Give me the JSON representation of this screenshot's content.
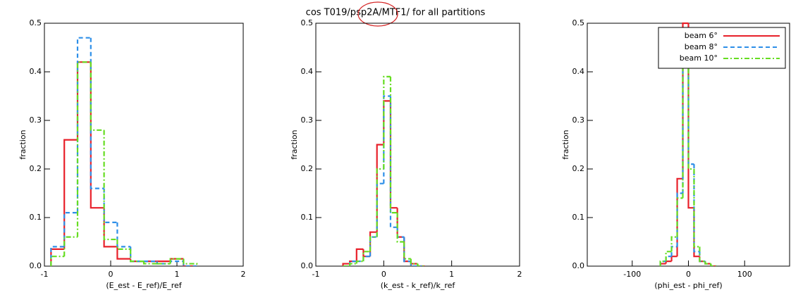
{
  "chart_data": [
    {
      "type": "histogram",
      "title": "cos T019/psp2A/MTF1/ for all partitions",
      "x_label": "(E_est - E_ref)/E_ref",
      "y_label": "fraction",
      "bins": [
        -0.9,
        -0.7,
        -0.5,
        -0.3,
        -0.1,
        0.1,
        0.3,
        0.5,
        0.7,
        0.9,
        1.1,
        1.3
      ],
      "series": [
        {
          "color": "#e8202a",
          "linestyle": "solid",
          "values": [
            0.035,
            0.26,
            0.42,
            0.12,
            0.04,
            0.015,
            0.01,
            0.01,
            0.01,
            0.015,
            0.0
          ]
        },
        {
          "color": "#2e8fe8",
          "linestyle": "dashed",
          "values": [
            0.04,
            0.11,
            0.47,
            0.16,
            0.09,
            0.04,
            0.01,
            0.01,
            0.005,
            0.01,
            0.0
          ]
        },
        {
          "color": "#66dd22",
          "linestyle": "dashdot",
          "values": [
            0.02,
            0.06,
            0.42,
            0.28,
            0.055,
            0.035,
            0.01,
            0.005,
            0.005,
            0.015,
            0.005
          ]
        }
      ],
      "xlim": [
        -1,
        2
      ],
      "xticks": [
        -1,
        0,
        1,
        2
      ],
      "ylim": [
        0,
        0.5
      ],
      "yticks": [
        {
          "value": 0,
          "label": "0.0"
        },
        0.1,
        0.2,
        0.3,
        0.4,
        0.5
      ]
    },
    {
      "type": "histogram",
      "x_label": "(k_est - k_ref)/k_ref",
      "y_label": "fraction",
      "bins": [
        -0.6,
        -0.5,
        -0.4,
        -0.3,
        -0.2,
        -0.1,
        0.0,
        0.1,
        0.2,
        0.3,
        0.4,
        0.5,
        0.6
      ],
      "series": [
        {
          "color": "#e8202a",
          "linestyle": "solid",
          "values": [
            0.005,
            0.01,
            0.035,
            0.02,
            0.07,
            0.25,
            0.34,
            0.12,
            0.06,
            0.01,
            0.005,
            0.0
          ]
        },
        {
          "color": "#2e8fe8",
          "linestyle": "dashed",
          "values": [
            0.0,
            0.01,
            0.01,
            0.02,
            0.06,
            0.17,
            0.35,
            0.08,
            0.06,
            0.01,
            0.0,
            0.0
          ]
        },
        {
          "color": "#66dd22",
          "linestyle": "dashdot",
          "values": [
            0.0,
            0.005,
            0.01,
            0.03,
            0.06,
            0.2,
            0.39,
            0.11,
            0.05,
            0.015,
            0.005,
            0.0
          ]
        }
      ],
      "xlim": [
        -1,
        2
      ],
      "xticks": [
        -1,
        0,
        1,
        2
      ],
      "ylim": [
        0,
        0.5
      ],
      "yticks": [
        {
          "value": 0,
          "label": "0.0"
        },
        0.1,
        0.2,
        0.3,
        0.4,
        0.5
      ]
    },
    {
      "type": "histogram",
      "x_label": "(phi_est - phi_ref)",
      "y_label": "fraction",
      "bins": [
        -50,
        -40,
        -30,
        -20,
        -10,
        0,
        10,
        20,
        30,
        40,
        50
      ],
      "series": [
        {
          "name": "beam 6°",
          "color": "#e8202a",
          "linestyle": "solid",
          "values": [
            0.005,
            0.01,
            0.02,
            0.18,
            0.5,
            0.12,
            0.02,
            0.01,
            0.005,
            0.0
          ]
        },
        {
          "name": "beam 8°",
          "color": "#2e8fe8",
          "linestyle": "dashed",
          "values": [
            0.01,
            0.02,
            0.04,
            0.15,
            0.48,
            0.21,
            0.03,
            0.01,
            0.005,
            0.0
          ]
        },
        {
          "name": "beam 10°",
          "color": "#66dd22",
          "linestyle": "dashdot",
          "values": [
            0.01,
            0.03,
            0.06,
            0.14,
            0.45,
            0.2,
            0.04,
            0.01,
            0.005,
            0.0
          ]
        }
      ],
      "xlim": [
        -180,
        180
      ],
      "xticks": [
        -100,
        0,
        100
      ],
      "ylim": [
        0,
        0.5
      ],
      "yticks": [
        {
          "value": 0,
          "label": "0.0"
        },
        0.1,
        0.2,
        0.3,
        0.4,
        0.5
      ],
      "legend": "upper right"
    }
  ]
}
